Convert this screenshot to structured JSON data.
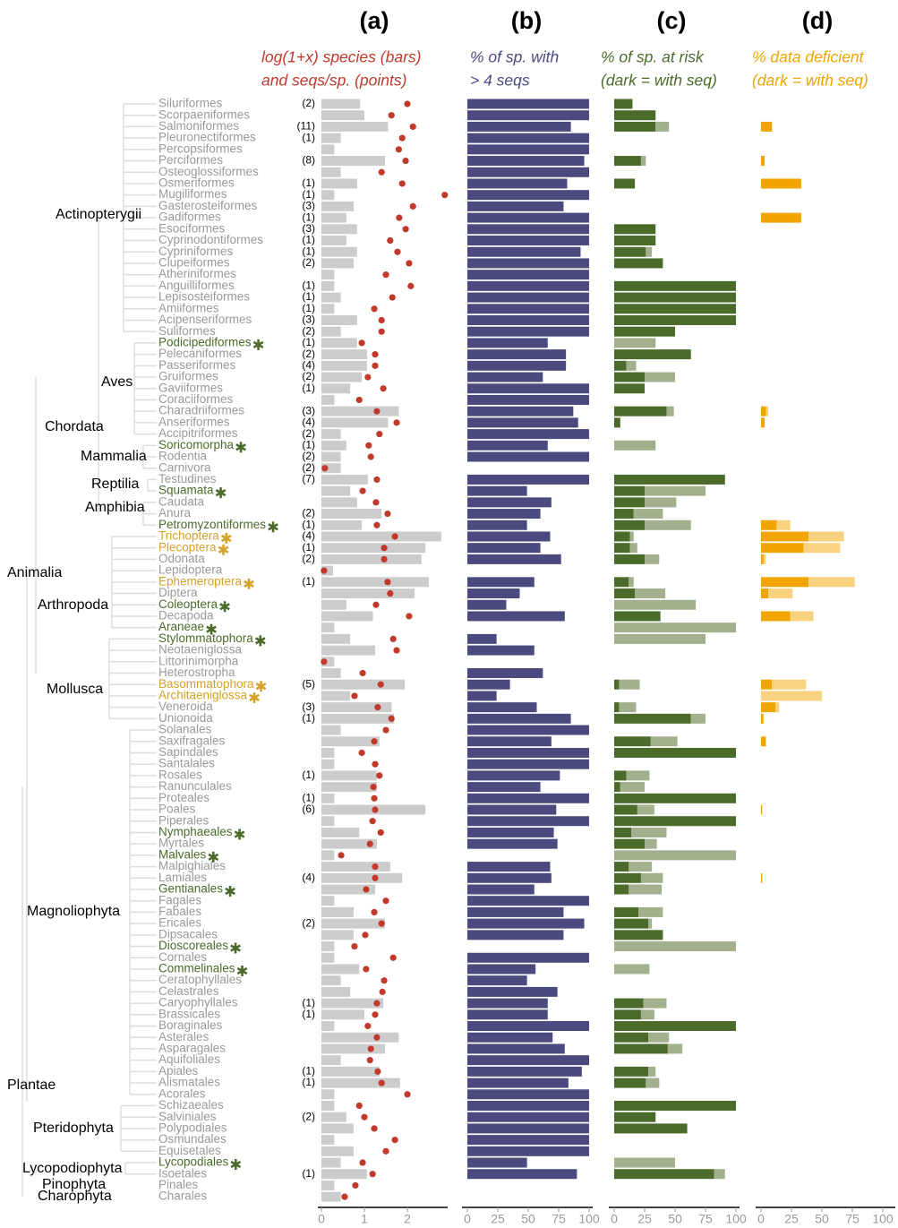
{
  "categories": [
    "Siluriformes",
    "Scorpaeniformes",
    "Salmoniformes",
    "Pleuronectiformes",
    "Percopsiformes",
    "Perciformes",
    "Osteoglossiformes",
    "Osmeriformes",
    "Mugiliformes",
    "Gasterosteiformes",
    "Gadiformes",
    "Esociformes",
    "Cyprinodontiformes",
    "Cypriniformes",
    "Clupeiformes",
    "Atheriniformes",
    "Anguilliformes",
    "Lepisosteiformes",
    "Amiiformes",
    "Acipenseriformes",
    "Suliformes",
    "Podicipediformes",
    "Pelecaniformes",
    "Passeriformes",
    "Gruiformes",
    "Gaviiformes",
    "Coraciiformes",
    "Charadriiformes",
    "Anseriformes",
    "Accipitriformes",
    "Soricomorpha",
    "Rodentia",
    "Carnivora",
    "Testudines",
    "Squamata",
    "Caudata",
    "Anura",
    "Petromyzontiformes",
    "Trichoptera",
    "Plecoptera",
    "Odonata",
    "Lepidoptera",
    "Ephemeroptera",
    "Diptera",
    "Coleoptera",
    "Decapoda",
    "Araneae",
    "Stylommatophora",
    "Neotaeniglossa",
    "Littorinimorpha",
    "Heterostropha",
    "Basommatophora",
    "Architaeniglossa",
    "Veneroida",
    "Unionoida",
    "Solanales",
    "Saxifragales",
    "Sapindales",
    "Santalales",
    "Rosales",
    "Ranunculales",
    "Proteales",
    "Poales",
    "Piperales",
    "Nymphaeales",
    "Myrtales",
    "Malvales",
    "Malpighiales",
    "Lamiales",
    "Gentianales",
    "Fagales",
    "Fabales",
    "Ericales",
    "Dipsacales",
    "Dioscoreales",
    "Cornales",
    "Commelinales",
    "Ceratophyllales",
    "Celastrales",
    "Caryophyllales",
    "Brassicales",
    "Boraginales",
    "Asterales",
    "Asparagales",
    "Aquifoliales",
    "Apiales",
    "Alismatales",
    "Acorales",
    "Schizaeales",
    "Salviniales",
    "Polypodiales",
    "Osmundales",
    "Equisetales",
    "Lycopodiales",
    "Isoetales",
    "Pinales",
    "Charales"
  ],
  "label_color": [
    "#999999",
    "#999999",
    "#999999",
    "#999999",
    "#999999",
    "#999999",
    "#999999",
    "#999999",
    "#999999",
    "#999999",
    "#999999",
    "#999999",
    "#999999",
    "#999999",
    "#999999",
    "#999999",
    "#999999",
    "#999999",
    "#999999",
    "#999999",
    "#999999",
    "#4a6b2a",
    "#999999",
    "#999999",
    "#999999",
    "#999999",
    "#999999",
    "#999999",
    "#999999",
    "#999999",
    "#4a6b2a",
    "#999999",
    "#999999",
    "#999999",
    "#4a6b2a",
    "#999999",
    "#999999",
    "#4a6b2a",
    "#d4a12a",
    "#d4a12a",
    "#999999",
    "#999999",
    "#d4a12a",
    "#999999",
    "#4a6b2a",
    "#999999",
    "#4a6b2a",
    "#4a6b2a",
    "#999999",
    "#999999",
    "#999999",
    "#d4a12a",
    "#d4a12a",
    "#999999",
    "#999999",
    "#999999",
    "#999999",
    "#999999",
    "#999999",
    "#999999",
    "#999999",
    "#999999",
    "#999999",
    "#999999",
    "#4a6b2a",
    "#999999",
    "#4a6b2a",
    "#999999",
    "#999999",
    "#4a6b2a",
    "#999999",
    "#999999",
    "#999999",
    "#999999",
    "#4a6b2a",
    "#999999",
    "#4a6b2a",
    "#999999",
    "#999999",
    "#999999",
    "#999999",
    "#999999",
    "#999999",
    "#999999",
    "#999999",
    "#999999",
    "#999999",
    "#999999",
    "#999999",
    "#999999",
    "#999999",
    "#999999",
    "#999999",
    "#4a6b2a",
    "#999999",
    "#999999",
    "#999999"
  ],
  "starred": [
    false,
    false,
    false,
    false,
    false,
    false,
    false,
    false,
    false,
    false,
    false,
    false,
    false,
    false,
    false,
    false,
    false,
    false,
    false,
    false,
    false,
    true,
    false,
    false,
    false,
    false,
    false,
    false,
    false,
    false,
    true,
    false,
    false,
    false,
    true,
    false,
    false,
    true,
    true,
    true,
    false,
    false,
    true,
    false,
    true,
    false,
    true,
    true,
    false,
    false,
    false,
    true,
    true,
    false,
    false,
    false,
    false,
    false,
    false,
    false,
    false,
    false,
    false,
    false,
    true,
    false,
    true,
    false,
    false,
    true,
    false,
    false,
    false,
    false,
    true,
    false,
    true,
    false,
    false,
    false,
    false,
    false,
    false,
    false,
    false,
    false,
    false,
    false,
    false,
    false,
    false,
    false,
    false,
    true,
    false,
    false,
    false
  ],
  "clades": [
    "Actinopterygii",
    "Aves",
    "Chordata",
    "Mammalia",
    "Reptilia",
    "Amphibia",
    "Animalia",
    "Arthropoda",
    "Mollusca",
    "Magnoliophyta",
    "Plantae",
    "Pteridophyta",
    "Lycopodiophyta",
    "Pinophyta",
    "Charophyta"
  ],
  "chart_data": [
    {
      "type": "bardot",
      "title": "(a)",
      "subtitle": [
        "log(1+x) species (bars)",
        "and seqs/sp. (points)"
      ],
      "subtitle_color": "#c0392b",
      "color": "#cccccc",
      "point_color": "#c0392b",
      "xlim": [
        0,
        2.9
      ],
      "xticks": [
        0,
        1,
        2
      ],
      "values": [
        0.9,
        1.0,
        1.55,
        0.45,
        0.3,
        1.48,
        0.45,
        0.83,
        0.3,
        0.75,
        0.58,
        0.83,
        0.58,
        0.83,
        0.75,
        0.3,
        0.3,
        0.45,
        0.3,
        0.83,
        0.45,
        0.83,
        1.06,
        1.06,
        0.94,
        0.67,
        0.3,
        1.8,
        1.55,
        0.45,
        0.58,
        0.45,
        0.45,
        1.08,
        0.67,
        0.83,
        1.4,
        0.94,
        2.79,
        2.42,
        2.33,
        0.27,
        2.5,
        2.17,
        0.58,
        1.2,
        0.3,
        0.67,
        1.25,
        0.3,
        0.45,
        1.94,
        0.67,
        1.63,
        1.69,
        0.45,
        1.35,
        0.3,
        0.3,
        1.29,
        1.29,
        0.3,
        2.42,
        0.3,
        0.88,
        1.29,
        0.3,
        1.6,
        1.88,
        1.25,
        0.3,
        0.75,
        1.48,
        0.75,
        0.3,
        0.3,
        0.88,
        0.45,
        0.67,
        1.44,
        1.0,
        0.3,
        1.8,
        1.48,
        0.45,
        1.35,
        1.83,
        0.3,
        0.3,
        0.58,
        0.75,
        0.3,
        0.75,
        0.45,
        1.06,
        0.3,
        0.45
      ],
      "points": [
        2.0,
        1.63,
        2.13,
        1.88,
        1.8,
        1.96,
        1.4,
        1.88,
        2.87,
        2.13,
        1.81,
        1.96,
        1.6,
        1.77,
        2.04,
        1.5,
        2.08,
        1.65,
        1.23,
        1.4,
        1.4,
        0.94,
        1.25,
        1.25,
        1.08,
        1.44,
        0.88,
        1.29,
        1.75,
        1.35,
        1.1,
        1.15,
        0.08,
        1.29,
        0.96,
        1.27,
        1.54,
        1.29,
        1.71,
        1.46,
        1.46,
        0.06,
        1.54,
        1.6,
        1.27,
        2.04,
        null,
        1.67,
        1.75,
        0.06,
        0.96,
        1.38,
        0.77,
        1.31,
        1.63,
        1.5,
        1.23,
        0.94,
        1.25,
        1.35,
        1.21,
        1.23,
        1.25,
        1.19,
        1.38,
        1.13,
        0.46,
        1.25,
        1.25,
        1.04,
        1.5,
        1.23,
        1.4,
        1.02,
        0.77,
        1.67,
        1.04,
        1.46,
        1.42,
        1.29,
        1.25,
        1.08,
        1.29,
        1.15,
        1.13,
        1.31,
        1.4,
        2.0,
        0.88,
        1.0,
        1.23,
        1.71,
        1.5,
        0.96,
        1.19,
        0.79,
        0.54
      ],
      "n_labels": [
        "(2)",
        null,
        "(11)",
        "(1)",
        null,
        "(8)",
        null,
        "(1)",
        "(1)",
        "(3)",
        "(1)",
        "(3)",
        "(1)",
        "(1)",
        "(2)",
        null,
        "(1)",
        "(1)",
        "(1)",
        "(3)",
        "(2)",
        "(1)",
        "(2)",
        "(4)",
        "(2)",
        "(1)",
        null,
        "(3)",
        "(4)",
        "(2)",
        "(1)",
        "(2)",
        "(2)",
        "(7)",
        null,
        null,
        "(2)",
        "(1)",
        "(4)",
        "(1)",
        "(2)",
        null,
        "(1)",
        null,
        null,
        null,
        null,
        null,
        null,
        null,
        null,
        "(5)",
        null,
        "(3)",
        "(1)",
        null,
        null,
        null,
        null,
        "(1)",
        null,
        "(1)",
        "(6)",
        null,
        null,
        null,
        null,
        null,
        "(4)",
        null,
        null,
        null,
        "(2)",
        null,
        null,
        null,
        null,
        null,
        null,
        "(1)",
        "(1)",
        null,
        null,
        null,
        null,
        "(1)",
        "(1)",
        null,
        null,
        "(2)",
        null,
        null,
        null,
        null,
        "(1)",
        null,
        null
      ]
    },
    {
      "type": "bar",
      "title": "(b)",
      "subtitle": [
        "% of sp. with",
        "> 4 seqs"
      ],
      "subtitle_color": "#4a4a7f",
      "color": "#4a4a7f",
      "xlim": [
        0,
        100
      ],
      "xticks": [
        0,
        25,
        50,
        75,
        100
      ],
      "values": [
        100,
        100,
        85,
        100,
        100,
        96,
        100,
        82,
        100,
        79,
        100,
        100,
        100,
        93,
        100,
        100,
        100,
        100,
        100,
        100,
        100,
        66,
        81,
        81,
        62,
        100,
        100,
        87,
        91,
        100,
        66,
        100,
        null,
        100,
        49,
        69,
        60,
        49,
        68,
        60,
        77,
        null,
        55,
        43,
        32,
        80,
        null,
        24,
        55,
        null,
        62,
        35,
        24,
        57,
        85,
        100,
        69,
        100,
        100,
        76,
        60,
        100,
        73,
        100,
        71,
        74,
        null,
        68,
        69,
        55,
        100,
        79,
        96,
        79,
        null,
        100,
        56,
        49,
        74,
        66,
        66,
        100,
        70,
        80,
        100,
        94,
        83,
        100,
        100,
        100,
        100,
        100,
        100,
        49,
        90,
        null,
        null
      ]
    },
    {
      "type": "stacked",
      "title": "(c)",
      "subtitle": [
        "% of sp. at risk",
        "(dark = with seq)"
      ],
      "subtitle_color": "#4a6b2a",
      "xlim": [
        0,
        100
      ],
      "xticks": [
        0,
        25,
        50,
        75,
        100
      ],
      "series": [
        {
          "color": "#4a6b2a",
          "values": [
            15,
            34,
            34,
            null,
            null,
            22,
            null,
            17,
            null,
            null,
            null,
            34,
            34,
            26,
            40,
            null,
            100,
            100,
            100,
            100,
            50,
            null,
            63,
            10,
            25,
            25,
            null,
            43,
            5,
            null,
            null,
            null,
            null,
            91,
            25,
            25,
            16,
            25,
            13,
            13,
            25,
            null,
            12,
            17,
            null,
            38,
            null,
            null,
            null,
            null,
            null,
            4,
            null,
            4,
            63,
            null,
            30,
            100,
            null,
            10,
            5,
            100,
            19,
            100,
            14,
            25,
            null,
            12,
            22,
            12,
            null,
            20,
            28,
            40,
            null,
            null,
            null,
            null,
            null,
            24,
            22,
            100,
            28,
            44,
            null,
            28,
            26,
            null,
            100,
            34,
            60,
            null,
            null,
            null,
            82,
            null,
            null
          ]
        },
        {
          "color": "#a3b08e",
          "values": [
            null,
            null,
            11,
            null,
            null,
            4,
            null,
            null,
            null,
            null,
            null,
            null,
            null,
            5,
            null,
            null,
            null,
            null,
            null,
            null,
            null,
            34,
            null,
            8,
            25,
            null,
            null,
            6,
            null,
            null,
            34,
            null,
            null,
            null,
            50,
            26,
            24,
            38,
            3,
            6,
            12,
            null,
            4,
            25,
            67,
            null,
            100,
            75,
            null,
            null,
            null,
            17,
            null,
            14,
            12,
            null,
            22,
            null,
            null,
            19,
            20,
            null,
            14,
            null,
            29,
            10,
            100,
            19,
            18,
            27,
            null,
            20,
            3,
            null,
            100,
            null,
            29,
            null,
            null,
            19,
            11,
            null,
            17,
            12,
            null,
            6,
            11,
            null,
            null,
            null,
            null,
            null,
            null,
            50,
            9,
            null,
            null
          ]
        }
      ]
    },
    {
      "type": "stacked",
      "title": "(d)",
      "subtitle": [
        "% data deficient",
        "(dark = with seq)"
      ],
      "subtitle_color": "#f0a500",
      "xlim": [
        0,
        100
      ],
      "xticks": [
        0,
        25,
        50,
        75,
        100
      ],
      "series": [
        {
          "color": "#f0a500",
          "values": [
            null,
            null,
            9,
            null,
            null,
            3,
            null,
            33,
            null,
            null,
            33,
            null,
            null,
            null,
            null,
            null,
            null,
            null,
            null,
            null,
            null,
            null,
            null,
            null,
            null,
            null,
            null,
            4,
            3,
            null,
            null,
            null,
            null,
            null,
            null,
            null,
            null,
            13,
            39,
            35,
            2,
            null,
            39,
            6,
            null,
            24,
            null,
            null,
            null,
            null,
            null,
            9,
            null,
            12,
            2,
            null,
            4,
            null,
            null,
            null,
            null,
            null,
            1,
            null,
            null,
            null,
            null,
            null,
            1,
            null,
            null,
            null,
            null,
            null,
            null,
            null,
            null,
            null,
            null,
            null,
            null,
            null,
            null,
            null,
            null,
            null,
            null,
            null,
            null,
            null,
            null,
            null,
            null,
            null,
            null,
            null,
            null
          ]
        },
        {
          "color": "#f9d27f",
          "values": [
            null,
            null,
            null,
            null,
            null,
            null,
            null,
            null,
            null,
            null,
            null,
            null,
            null,
            null,
            null,
            null,
            null,
            null,
            null,
            null,
            null,
            null,
            null,
            null,
            null,
            null,
            null,
            2,
            null,
            null,
            null,
            null,
            null,
            null,
            null,
            null,
            null,
            11,
            29,
            30,
            2,
            null,
            38,
            20,
            null,
            19,
            null,
            null,
            null,
            null,
            null,
            28,
            50,
            3,
            null,
            null,
            null,
            null,
            null,
            null,
            null,
            null,
            null,
            null,
            null,
            null,
            null,
            null,
            null,
            null,
            null,
            null,
            null,
            null,
            null,
            null,
            null,
            null,
            null,
            null,
            null,
            null,
            null,
            null,
            null,
            null,
            null,
            null,
            null,
            null,
            null,
            null,
            null,
            null,
            null,
            null,
            null
          ]
        }
      ]
    }
  ]
}
